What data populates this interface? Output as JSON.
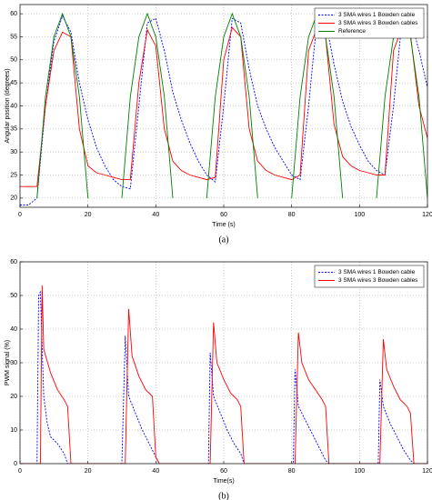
{
  "chart_data": [
    {
      "type": "line",
      "caption": "(a)",
      "xlabel": "Time (s)",
      "ylabel": "Angular position (degrees)",
      "xlim": [
        0,
        120
      ],
      "xticks": [
        0,
        20,
        40,
        60,
        80,
        100,
        120
      ],
      "ylim": [
        18,
        62
      ],
      "yticks": [
        20,
        25,
        30,
        35,
        40,
        45,
        50,
        55,
        60
      ],
      "grid": true,
      "legend": "upper right",
      "series": [
        {
          "name": "3 SMA wires 1 Bowden cable",
          "color": "#0000ff",
          "dashed": true,
          "x": [
            0,
            2.5,
            5,
            7.5,
            10,
            12.5,
            15,
            17.5,
            20,
            22.5,
            25,
            27.5,
            30,
            32.5,
            35,
            37.5,
            40,
            42.5,
            45,
            47.5,
            50,
            52.5,
            55,
            57.5,
            60,
            62.5,
            65,
            67.5,
            70,
            72.5,
            75,
            77.5,
            80,
            82.5,
            85,
            87.5,
            90,
            92.5,
            95,
            97.5,
            100,
            102.5,
            105,
            107.5,
            110,
            112.5,
            115,
            117.5,
            120
          ],
          "values": [
            18.5,
            18.5,
            20,
            40,
            54,
            59.5,
            56,
            45,
            37,
            31,
            27,
            24,
            22.5,
            22,
            40,
            58,
            59,
            52,
            43,
            37,
            32,
            28,
            25,
            23.5,
            40,
            59,
            58,
            48,
            40,
            35,
            31,
            28,
            25,
            24,
            40,
            59,
            58.5,
            49,
            41,
            35.5,
            31.5,
            28,
            26,
            25,
            40,
            58.5,
            59,
            52,
            44
          ]
        },
        {
          "name": "3 SMA wires 3 Bowden cables",
          "color": "#ff0000",
          "dashed": false,
          "x": [
            0,
            2.5,
            5,
            7.5,
            10,
            12.5,
            15,
            17.5,
            20,
            22.5,
            25,
            27.5,
            30,
            32.5,
            35,
            37.5,
            40,
            42.5,
            45,
            47.5,
            50,
            52.5,
            55,
            57.5,
            60,
            62.5,
            65,
            67.5,
            70,
            72.5,
            75,
            77.5,
            80,
            82.5,
            85,
            87.5,
            90,
            92.5,
            95,
            97.5,
            100,
            102.5,
            105,
            107.5,
            110,
            112.5,
            115,
            117.5,
            120
          ],
          "values": [
            22.5,
            22.5,
            22.5,
            40,
            52,
            56,
            55,
            35,
            27,
            25.5,
            25,
            24.5,
            24,
            24,
            45,
            56.5,
            53,
            35,
            28,
            26,
            25,
            24.5,
            24,
            24.5,
            50,
            57,
            55,
            35,
            28,
            26,
            25,
            24.5,
            24,
            25,
            52,
            57,
            55,
            36,
            29,
            27,
            26,
            25.5,
            25,
            25,
            52,
            57,
            55.5,
            40,
            33
          ]
        },
        {
          "name": "Reference",
          "color": "#008000",
          "dashed": false,
          "x": [
            5,
            7.5,
            10,
            12.5,
            15,
            17.5,
            20,
            25,
            30,
            32.5,
            35,
            37.5,
            40,
            42.5,
            45,
            50,
            55,
            57.5,
            60,
            62.5,
            65,
            67.5,
            70,
            75,
            80,
            82.5,
            85,
            87.5,
            90,
            92.5,
            95,
            100,
            105,
            107.5,
            110,
            112.5,
            115,
            117.5,
            120
          ],
          "values": [
            20,
            42,
            55,
            60,
            55,
            42,
            20,
            null,
            20,
            42,
            55,
            60,
            55,
            42,
            20,
            null,
            20,
            42,
            55,
            60,
            55,
            42,
            20,
            null,
            20,
            42,
            55,
            60,
            55,
            42,
            20,
            null,
            20,
            42,
            55,
            60,
            55,
            42,
            20
          ]
        }
      ]
    },
    {
      "type": "line",
      "caption": "(b)",
      "xlabel": "Time(s)",
      "ylabel": "PWM signal (%)",
      "xlim": [
        0,
        120
      ],
      "xticks": [
        0,
        20,
        40,
        60,
        80,
        100,
        120
      ],
      "ylim": [
        0,
        60
      ],
      "yticks": [
        0,
        10,
        20,
        30,
        40,
        50,
        60
      ],
      "grid": true,
      "legend": "upper right",
      "series": [
        {
          "name": "3 SMA wires 1 Bowden cable",
          "color": "#0000ff",
          "dashed": true,
          "x": [
            0,
            5,
            5.5,
            6,
            7,
            8,
            9,
            11,
            13,
            14,
            30,
            31,
            32,
            34,
            36,
            38,
            40,
            41,
            55.5,
            56,
            57,
            59,
            61,
            63,
            65,
            66,
            80.5,
            81,
            82,
            84,
            86,
            88,
            90,
            91,
            105.5,
            106,
            107,
            109,
            111,
            113,
            115,
            116,
            120
          ],
          "values": [
            0,
            0,
            50,
            51,
            20,
            12,
            8,
            6,
            3,
            0,
            0,
            38,
            20,
            15,
            10,
            6,
            2,
            0,
            0,
            33,
            20,
            15,
            10,
            6,
            3,
            0,
            0,
            28,
            17,
            13,
            9,
            5,
            1,
            0,
            0,
            25,
            17,
            12,
            8,
            4,
            1,
            0,
            0
          ]
        },
        {
          "name": "3 SMA wires 3 Bowden cables",
          "color": "#ff0000",
          "dashed": false,
          "x": [
            0,
            6,
            6.5,
            7,
            9,
            11,
            13,
            14,
            15,
            31,
            32,
            33,
            35,
            37,
            39,
            40,
            41,
            56,
            57,
            58,
            60,
            62,
            64,
            65,
            66,
            81,
            82,
            83,
            85,
            87,
            89,
            90,
            91,
            106,
            107,
            108,
            110,
            112,
            114,
            115,
            116,
            120
          ],
          "values": [
            0,
            0,
            53,
            34,
            27,
            22,
            19,
            17,
            0,
            0,
            46,
            32,
            26,
            22,
            20,
            2,
            0,
            0,
            42,
            30,
            25,
            21,
            19,
            17,
            0,
            0,
            39,
            30,
            25,
            22,
            19,
            17,
            0,
            0,
            37,
            28,
            23,
            19,
            17,
            15,
            0,
            0
          ]
        }
      ]
    }
  ]
}
